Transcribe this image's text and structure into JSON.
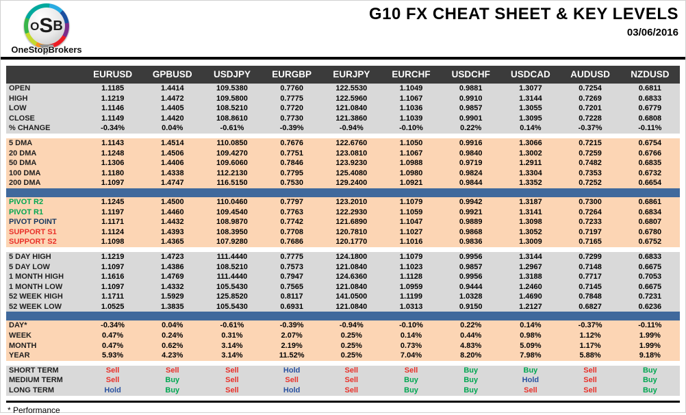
{
  "brand": {
    "logo_letters": [
      "O",
      "S",
      "B"
    ],
    "logo_name": "OneStopBrokers"
  },
  "header": {
    "title": "G10 FX CHEAT SHEET & KEY LEVELS",
    "date": "03/06/2016"
  },
  "palette": {
    "header_bg": "#3b3b3b",
    "gray_row": "#d9d9d9",
    "peach_row": "#fcd5b4",
    "divider_blue": "#40699c",
    "sell": "#e8312a",
    "buy": "#00a651",
    "hold": "#2a52a0",
    "pivot_green": "#00a651",
    "pivot_navy": "#17375e",
    "support_red": "#e8312a"
  },
  "table": {
    "columns": [
      "EURUSD",
      "GPBUSD",
      "USDJPY",
      "EURGBP",
      "EURJPY",
      "EURCHF",
      "USDCHF",
      "USDCAD",
      "AUDUSD",
      "NZDUSD"
    ],
    "sections": [
      {
        "id": "ohlc",
        "bg": "gray",
        "after": "gap",
        "rows": [
          {
            "label": "OPEN",
            "values": [
              "1.1185",
              "1.4414",
              "109.5380",
              "0.7760",
              "122.5530",
              "1.1049",
              "0.9881",
              "1.3077",
              "0.7254",
              "0.6811"
            ]
          },
          {
            "label": "HIGH",
            "values": [
              "1.1219",
              "1.4472",
              "109.5800",
              "0.7775",
              "122.5960",
              "1.1067",
              "0.9910",
              "1.3144",
              "0.7269",
              "0.6833"
            ]
          },
          {
            "label": "LOW",
            "values": [
              "1.1146",
              "1.4405",
              "108.5210",
              "0.7720",
              "121.0840",
              "1.1036",
              "0.9857",
              "1.3055",
              "0.7201",
              "0.6779"
            ]
          },
          {
            "label": "CLOSE",
            "values": [
              "1.1149",
              "1.4420",
              "108.8610",
              "0.7730",
              "121.3860",
              "1.1039",
              "0.9901",
              "1.3095",
              "0.7228",
              "0.6808"
            ]
          },
          {
            "label": "% CHANGE",
            "values": [
              "-0.34%",
              "0.04%",
              "-0.61%",
              "-0.39%",
              "-0.94%",
              "-0.10%",
              "0.22%",
              "0.14%",
              "-0.37%",
              "-0.11%"
            ]
          }
        ]
      },
      {
        "id": "dma",
        "bg": "peach",
        "after": "blue-bar",
        "rows": [
          {
            "label": "5 DMA",
            "values": [
              "1.1143",
              "1.4514",
              "110.0850",
              "0.7676",
              "122.6760",
              "1.1050",
              "0.9916",
              "1.3066",
              "0.7215",
              "0.6754"
            ]
          },
          {
            "label": "20 DMA",
            "values": [
              "1.1248",
              "1.4506",
              "109.4270",
              "0.7751",
              "123.0810",
              "1.1067",
              "0.9840",
              "1.3002",
              "0.7259",
              "0.6766"
            ]
          },
          {
            "label": "50 DMA",
            "values": [
              "1.1306",
              "1.4406",
              "109.6060",
              "0.7846",
              "123.9230",
              "1.0988",
              "0.9719",
              "1.2911",
              "0.7482",
              "0.6835"
            ]
          },
          {
            "label": "100 DMA",
            "values": [
              "1.1180",
              "1.4338",
              "112.2130",
              "0.7795",
              "125.4080",
              "1.0980",
              "0.9824",
              "1.3304",
              "0.7353",
              "0.6732"
            ]
          },
          {
            "label": "200 DMA",
            "values": [
              "1.1097",
              "1.4747",
              "116.5150",
              "0.7530",
              "129.2400",
              "1.0921",
              "0.9844",
              "1.3352",
              "0.7252",
              "0.6654"
            ]
          }
        ]
      },
      {
        "id": "pivots",
        "bg": "peach",
        "after": "gap",
        "rows": [
          {
            "label": "PIVOT R2",
            "label_color": "pivot_green",
            "values": [
              "1.1245",
              "1.4500",
              "110.0460",
              "0.7797",
              "123.2010",
              "1.1079",
              "0.9942",
              "1.3187",
              "0.7300",
              "0.6861"
            ]
          },
          {
            "label": "PIVOT R1",
            "label_color": "pivot_green",
            "values": [
              "1.1197",
              "1.4460",
              "109.4540",
              "0.7763",
              "122.2930",
              "1.1059",
              "0.9921",
              "1.3141",
              "0.7264",
              "0.6834"
            ]
          },
          {
            "label": "PIVOT POINT",
            "label_color": "pivot_navy",
            "values": [
              "1.1171",
              "1.4432",
              "108.9870",
              "0.7742",
              "121.6890",
              "1.1047",
              "0.9889",
              "1.3098",
              "0.7233",
              "0.6807"
            ]
          },
          {
            "label": "SUPPORT S1",
            "label_color": "support_red",
            "values": [
              "1.1124",
              "1.4393",
              "108.3950",
              "0.7708",
              "120.7810",
              "1.1027",
              "0.9868",
              "1.3052",
              "0.7197",
              "0.6780"
            ]
          },
          {
            "label": "SUPPORT S2",
            "label_color": "support_red",
            "values": [
              "1.1098",
              "1.4365",
              "107.9280",
              "0.7686",
              "120.1770",
              "1.1016",
              "0.9836",
              "1.3009",
              "0.7165",
              "0.6752"
            ]
          }
        ]
      },
      {
        "id": "ranges",
        "bg": "gray",
        "after": "blue-bar",
        "rows": [
          {
            "label": "5 DAY HIGH",
            "values": [
              "1.1219",
              "1.4723",
              "111.4440",
              "0.7775",
              "124.1800",
              "1.1079",
              "0.9956",
              "1.3144",
              "0.7299",
              "0.6833"
            ]
          },
          {
            "label": "5 DAY LOW",
            "values": [
              "1.1097",
              "1.4386",
              "108.5210",
              "0.7573",
              "121.0840",
              "1.1023",
              "0.9857",
              "1.2967",
              "0.7148",
              "0.6675"
            ]
          },
          {
            "label": "1 MONTH HIGH",
            "values": [
              "1.1616",
              "1.4769",
              "111.4440",
              "0.7947",
              "124.6360",
              "1.1128",
              "0.9956",
              "1.3188",
              "0.7717",
              "0.7053"
            ]
          },
          {
            "label": "1 MONTH LOW",
            "values": [
              "1.1097",
              "1.4332",
              "105.5430",
              "0.7565",
              "121.0840",
              "1.0959",
              "0.9444",
              "1.2460",
              "0.7145",
              "0.6675"
            ]
          },
          {
            "label": "52 WEEK HIGH",
            "values": [
              "1.1711",
              "1.5929",
              "125.8520",
              "0.8117",
              "141.0500",
              "1.1199",
              "1.0328",
              "1.4690",
              "0.7848",
              "0.7231"
            ]
          },
          {
            "label": "52 WEEK LOW",
            "values": [
              "1.0525",
              "1.3835",
              "105.5430",
              "0.6931",
              "121.0840",
              "1.0313",
              "0.9150",
              "1.2127",
              "0.6827",
              "0.6236"
            ]
          }
        ]
      },
      {
        "id": "performance",
        "bg": "peach",
        "after": "gap",
        "rows": [
          {
            "label": "DAY*",
            "values": [
              "-0.34%",
              "0.04%",
              "-0.61%",
              "-0.39%",
              "-0.94%",
              "-0.10%",
              "0.22%",
              "0.14%",
              "-0.37%",
              "-0.11%"
            ]
          },
          {
            "label": "WEEK",
            "values": [
              "0.47%",
              "0.24%",
              "0.31%",
              "2.07%",
              "0.25%",
              "0.14%",
              "0.44%",
              "0.98%",
              "1.12%",
              "1.99%"
            ]
          },
          {
            "label": "MONTH",
            "values": [
              "0.47%",
              "0.62%",
              "3.14%",
              "2.19%",
              "0.25%",
              "0.73%",
              "4.83%",
              "5.09%",
              "1.17%",
              "1.99%"
            ]
          },
          {
            "label": "YEAR",
            "values": [
              "5.93%",
              "4.23%",
              "3.14%",
              "11.52%",
              "0.25%",
              "7.04%",
              "8.20%",
              "7.98%",
              "5.88%",
              "9.18%"
            ]
          }
        ]
      },
      {
        "id": "signals",
        "bg": "gray",
        "colored_values": true,
        "after": "none",
        "rows": [
          {
            "label": "SHORT TERM",
            "values": [
              "Sell",
              "Sell",
              "Sell",
              "Hold",
              "Sell",
              "Sell",
              "Buy",
              "Buy",
              "Sell",
              "Buy"
            ]
          },
          {
            "label": "MEDIUM TERM",
            "values": [
              "Sell",
              "Buy",
              "Sell",
              "Sell",
              "Sell",
              "Buy",
              "Buy",
              "Hold",
              "Sell",
              "Buy"
            ]
          },
          {
            "label": "LONG TERM",
            "values": [
              "Hold",
              "Buy",
              "Sell",
              "Hold",
              "Sell",
              "Buy",
              "Buy",
              "Sell",
              "Sell",
              "Buy"
            ]
          }
        ]
      }
    ]
  },
  "footer": {
    "note": "* Performance"
  }
}
